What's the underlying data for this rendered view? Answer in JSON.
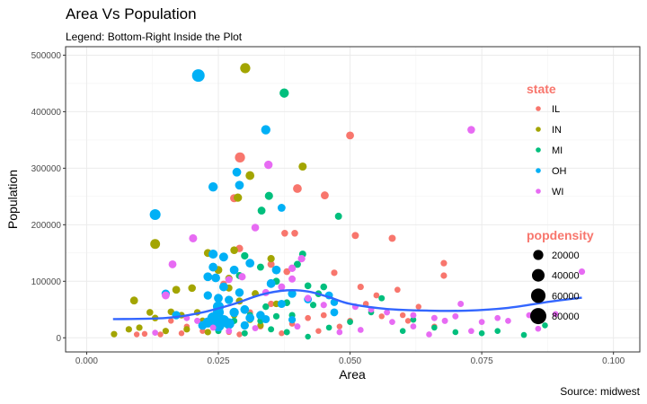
{
  "chart_data": {
    "type": "scatter",
    "title": "Area Vs Population",
    "subtitle": "Legend: Bottom-Right Inside the Plot",
    "caption": "Source: midwest",
    "xlabel": "Area",
    "ylabel": "Population",
    "xlim": [
      -0.004,
      0.105
    ],
    "ylim": [
      -25000,
      515000
    ],
    "x_ticks": [
      0,
      0.025,
      0.05,
      0.075,
      0.1
    ],
    "x_tick_labels": [
      "0.000",
      "0.025",
      "0.050",
      "0.075",
      "0.100"
    ],
    "y_ticks": [
      0,
      100000,
      200000,
      300000,
      400000,
      500000
    ],
    "y_tick_labels": [
      "0",
      "100000",
      "200000",
      "300000",
      "400000",
      "500000"
    ],
    "grid": true,
    "legend_placement": "bottom-right inside",
    "legend_color": {
      "title": "state",
      "entries": [
        {
          "label": "IL",
          "color": "#F8766D"
        },
        {
          "label": "IN",
          "color": "#A3A500"
        },
        {
          "label": "MI",
          "color": "#00BF7D"
        },
        {
          "label": "OH",
          "color": "#00B0F6"
        },
        {
          "label": "WI",
          "color": "#E76BF3"
        }
      ]
    },
    "legend_size": {
      "title": "popdensity",
      "entries": [
        {
          "label": "20000",
          "value": 20000
        },
        {
          "label": "40000",
          "value": 40000
        },
        {
          "label": "60000",
          "value": 60000
        },
        {
          "label": "80000",
          "value": 80000
        }
      ]
    },
    "legend_title_color": "#F8766D",
    "smooth_color": "#3366FF",
    "smooth": [
      [
        0.005,
        33000
      ],
      [
        0.015,
        35000
      ],
      [
        0.022,
        45000
      ],
      [
        0.028,
        60000
      ],
      [
        0.033,
        76000
      ],
      [
        0.038,
        84000
      ],
      [
        0.042,
        82000
      ],
      [
        0.046,
        72000
      ],
      [
        0.05,
        60000
      ],
      [
        0.057,
        51000
      ],
      [
        0.065,
        48000
      ],
      [
        0.072,
        48000
      ],
      [
        0.08,
        53000
      ],
      [
        0.088,
        64000
      ],
      [
        0.094,
        71000
      ]
    ],
    "point_columns": [
      "area",
      "population",
      "state",
      "popdensity"
    ],
    "points": [
      [
        0.0291,
        319000,
        "IL",
        20000
      ],
      [
        0.05,
        358000,
        "IL",
        8000
      ],
      [
        0.04,
        264000,
        "IL",
        12000
      ],
      [
        0.0452,
        252000,
        "IL",
        8000
      ],
      [
        0.051,
        181000,
        "IL",
        5000
      ],
      [
        0.058,
        176000,
        "IL",
        5000
      ],
      [
        0.0678,
        132000,
        "IL",
        3000
      ],
      [
        0.0678,
        110000,
        "IL",
        3000
      ],
      [
        0.0376,
        185000,
        "IL",
        4000
      ],
      [
        0.0395,
        185000,
        "IL",
        4000
      ],
      [
        0.028,
        247000,
        "IL",
        9000
      ],
      [
        0.029,
        158000,
        "IL",
        6000
      ],
      [
        0.035,
        130000,
        "IL",
        5000
      ],
      [
        0.038,
        117000,
        "IL",
        4000
      ],
      [
        0.047,
        115000,
        "IL",
        3000
      ],
      [
        0.052,
        90000,
        "IL",
        3000
      ],
      [
        0.059,
        85000,
        "IL",
        2000
      ],
      [
        0.055,
        75000,
        "IL",
        2000
      ],
      [
        0.053,
        60000,
        "IL",
        2000
      ],
      [
        0.045,
        40000,
        "IL",
        2000
      ],
      [
        0.042,
        35000,
        "IL",
        2000
      ],
      [
        0.048,
        20000,
        "IL",
        1500
      ],
      [
        0.035,
        60000,
        "IL",
        3000
      ],
      [
        0.031,
        45000,
        "IL",
        2500
      ],
      [
        0.027,
        10000,
        "IL",
        1500
      ],
      [
        0.022,
        12000,
        "IL",
        1500
      ],
      [
        0.018,
        8000,
        "IL",
        1500
      ],
      [
        0.014,
        6000,
        "IL",
        1500
      ],
      [
        0.011,
        7000,
        "IL",
        1500
      ],
      [
        0.0095,
        6000,
        "IL",
        1500
      ],
      [
        0.019,
        20000,
        "IL",
        1500
      ],
      [
        0.016,
        30000,
        "IL",
        1500
      ],
      [
        0.033,
        20000,
        "IL",
        2000
      ],
      [
        0.039,
        25000,
        "IL",
        2000
      ],
      [
        0.044,
        12000,
        "IL",
        1500
      ],
      [
        0.05,
        30000,
        "IL",
        2000
      ],
      [
        0.06,
        40000,
        "IL",
        1500
      ],
      [
        0.063,
        55000,
        "IL",
        1500
      ],
      [
        0.056,
        38000,
        "IL",
        1500
      ],
      [
        0.061,
        30000,
        "IL",
        1500
      ],
      [
        0.066,
        20000,
        "IL",
        1500
      ],
      [
        0.026,
        95000,
        "IL",
        4000
      ],
      [
        0.024,
        40000,
        "IL",
        2500
      ],
      [
        0.029,
        6000,
        "IL",
        1500
      ],
      [
        0.037,
        8000,
        "IL",
        1500
      ],
      [
        0.0301,
        477000,
        "IN",
        20000
      ],
      [
        0.041,
        303000,
        "IN",
        9000
      ],
      [
        0.031,
        287000,
        "IN",
        12000
      ],
      [
        0.0287,
        248000,
        "IN",
        10000
      ],
      [
        0.013,
        166000,
        "IN",
        18000
      ],
      [
        0.009,
        66000,
        "IN",
        8000
      ],
      [
        0.0052,
        6500,
        "IN",
        3000
      ],
      [
        0.028,
        155000,
        "IN",
        7000
      ],
      [
        0.035,
        140000,
        "IN",
        6000
      ],
      [
        0.023,
        150000,
        "IN",
        8000
      ],
      [
        0.025,
        120000,
        "IN",
        8000
      ],
      [
        0.027,
        105000,
        "IN",
        6000
      ],
      [
        0.02,
        88000,
        "IN",
        7000
      ],
      [
        0.017,
        85000,
        "IN",
        8000
      ],
      [
        0.012,
        45000,
        "IN",
        4000
      ],
      [
        0.013,
        35000,
        "IN",
        3500
      ],
      [
        0.016,
        46000,
        "IN",
        3500
      ],
      [
        0.018,
        40000,
        "IN",
        3500
      ],
      [
        0.021,
        45000,
        "IN",
        3500
      ],
      [
        0.022,
        30000,
        "IN",
        3500
      ],
      [
        0.024,
        35000,
        "IN",
        3500
      ],
      [
        0.026,
        25000,
        "IN",
        3500
      ],
      [
        0.028,
        40000,
        "IN",
        3000
      ],
      [
        0.031,
        32000,
        "IN",
        3500
      ],
      [
        0.033,
        22000,
        "IN",
        3000
      ],
      [
        0.01,
        18000,
        "IN",
        3000
      ],
      [
        0.008,
        15000,
        "IN",
        3000
      ],
      [
        0.015,
        12000,
        "IN",
        3000
      ],
      [
        0.019,
        15000,
        "IN",
        3000
      ],
      [
        0.023,
        10000,
        "IN",
        3000
      ],
      [
        0.029,
        65000,
        "IN",
        5000
      ],
      [
        0.032,
        78000,
        "IN",
        5000
      ],
      [
        0.036,
        60000,
        "IN",
        3500
      ],
      [
        0.027,
        88000,
        "IN",
        5000
      ],
      [
        0.0375,
        433000,
        "MI",
        15000
      ],
      [
        0.0346,
        251000,
        "MI",
        9000
      ],
      [
        0.0332,
        225000,
        "MI",
        8000
      ],
      [
        0.0478,
        215000,
        "MI",
        5000
      ],
      [
        0.041,
        148000,
        "MI",
        5000
      ],
      [
        0.03,
        145000,
        "MI",
        6000
      ],
      [
        0.04,
        130000,
        "MI",
        5000
      ],
      [
        0.033,
        125000,
        "MI",
        5000
      ],
      [
        0.029,
        110000,
        "MI",
        5000
      ],
      [
        0.036,
        100000,
        "MI",
        5000
      ],
      [
        0.042,
        92000,
        "MI",
        4000
      ],
      [
        0.044,
        78000,
        "MI",
        4000
      ],
      [
        0.038,
        62000,
        "MI",
        4000
      ],
      [
        0.034,
        55000,
        "MI",
        3500
      ],
      [
        0.031,
        40000,
        "MI",
        3000
      ],
      [
        0.036,
        38000,
        "MI",
        3000
      ],
      [
        0.039,
        40000,
        "MI",
        3000
      ],
      [
        0.033,
        30000,
        "MI",
        3000
      ],
      [
        0.035,
        15000,
        "MI",
        2500
      ],
      [
        0.038,
        10000,
        "MI",
        2500
      ],
      [
        0.03,
        8000,
        "MI",
        2500
      ],
      [
        0.025,
        12000,
        "MI",
        2500
      ],
      [
        0.046,
        18000,
        "MI",
        2000
      ],
      [
        0.05,
        28000,
        "MI",
        2000
      ],
      [
        0.054,
        45000,
        "MI",
        2000
      ],
      [
        0.056,
        70000,
        "MI",
        2500
      ],
      [
        0.062,
        32000,
        "MI",
        2000
      ],
      [
        0.066,
        18000,
        "MI",
        1800
      ],
      [
        0.07,
        10000,
        "MI",
        1800
      ],
      [
        0.075,
        8000,
        "MI",
        1800
      ],
      [
        0.078,
        12000,
        "MI",
        1800
      ],
      [
        0.06,
        12000,
        "MI",
        1800
      ],
      [
        0.045,
        90000,
        "MI",
        4000
      ],
      [
        0.028,
        30000,
        "MI",
        3000
      ],
      [
        0.043,
        58000,
        "MI",
        3000
      ],
      [
        0.042,
        2000,
        "MI",
        1500
      ],
      [
        0.087,
        22000,
        "MI",
        1800
      ],
      [
        0.083,
        5000,
        "MI",
        1800
      ],
      [
        0.0212,
        464000,
        "OH",
        40000
      ],
      [
        0.034,
        368000,
        "OH",
        15000
      ],
      [
        0.0285,
        293000,
        "OH",
        12000
      ],
      [
        0.029,
        270000,
        "OH",
        12000
      ],
      [
        0.024,
        267000,
        "OH",
        15000
      ],
      [
        0.037,
        230000,
        "OH",
        8000
      ],
      [
        0.013,
        218000,
        "OH",
        25000
      ],
      [
        0.024,
        148000,
        "OH",
        14000
      ],
      [
        0.026,
        143000,
        "OH",
        13000
      ],
      [
        0.031,
        132000,
        "OH",
        12000
      ],
      [
        0.024,
        125000,
        "OH",
        12000
      ],
      [
        0.028,
        120000,
        "OH",
        12000
      ],
      [
        0.036,
        120000,
        "OH",
        12000
      ],
      [
        0.023,
        108000,
        "OH",
        12000
      ],
      [
        0.0245,
        106000,
        "OH",
        12000
      ],
      [
        0.026,
        90000,
        "OH",
        12000
      ],
      [
        0.035,
        96000,
        "OH",
        12000
      ],
      [
        0.029,
        80000,
        "OH",
        11000
      ],
      [
        0.039,
        78000,
        "OH",
        10000
      ],
      [
        0.023,
        75000,
        "OH",
        10000
      ],
      [
        0.025,
        70000,
        "OH",
        12000
      ],
      [
        0.027,
        67000,
        "OH",
        10000
      ],
      [
        0.015,
        78000,
        "OH",
        10000
      ],
      [
        0.042,
        68000,
        "OH",
        8000
      ],
      [
        0.037,
        60000,
        "OH",
        9000
      ],
      [
        0.025,
        55000,
        "OH",
        25000
      ],
      [
        0.025,
        45000,
        "OH",
        25000
      ],
      [
        0.024,
        35000,
        "OH",
        30000
      ],
      [
        0.026,
        30000,
        "OH",
        30000
      ],
      [
        0.025,
        22000,
        "OH",
        35000
      ],
      [
        0.027,
        25000,
        "OH",
        25000
      ],
      [
        0.023,
        27000,
        "OH",
        20000
      ],
      [
        0.028,
        45000,
        "OH",
        15000
      ],
      [
        0.03,
        50000,
        "OH",
        12000
      ],
      [
        0.031,
        35000,
        "OH",
        12000
      ],
      [
        0.033,
        40000,
        "OH",
        11000
      ],
      [
        0.017,
        40000,
        "OH",
        10000
      ],
      [
        0.047,
        45000,
        "OH",
        8000
      ],
      [
        0.047,
        63000,
        "OH",
        7000
      ],
      [
        0.046,
        75000,
        "OH",
        8000
      ],
      [
        0.039,
        32000,
        "OH",
        6000
      ],
      [
        0.022,
        22000,
        "OH",
        12000
      ],
      [
        0.03,
        22000,
        "OH",
        10000
      ],
      [
        0.034,
        33000,
        "OH",
        9000
      ],
      [
        0.073,
        368000,
        "WI",
        7000
      ],
      [
        0.0345,
        306000,
        "WI",
        10000
      ],
      [
        0.032,
        195000,
        "WI",
        7000
      ],
      [
        0.0202,
        176000,
        "WI",
        9000
      ],
      [
        0.0163,
        130000,
        "WI",
        8000
      ],
      [
        0.0408,
        140000,
        "WI",
        6000
      ],
      [
        0.039,
        123000,
        "WI",
        6000
      ],
      [
        0.0295,
        108000,
        "WI",
        6000
      ],
      [
        0.039,
        104000,
        "WI",
        5000
      ],
      [
        0.027,
        103000,
        "WI",
        5000
      ],
      [
        0.015,
        75000,
        "WI",
        8000
      ],
      [
        0.037,
        90000,
        "WI",
        5000
      ],
      [
        0.034,
        80000,
        "WI",
        5000
      ],
      [
        0.042,
        70000,
        "WI",
        4000
      ],
      [
        0.045,
        58000,
        "WI",
        3000
      ],
      [
        0.051,
        55000,
        "WI",
        3000
      ],
      [
        0.054,
        50000,
        "WI",
        2500
      ],
      [
        0.057,
        45000,
        "WI",
        2500
      ],
      [
        0.062,
        40000,
        "WI",
        2500
      ],
      [
        0.066,
        35000,
        "WI",
        2500
      ],
      [
        0.068,
        30000,
        "WI",
        2500
      ],
      [
        0.07,
        38000,
        "WI",
        2500
      ],
      [
        0.075,
        28000,
        "WI",
        2000
      ],
      [
        0.078,
        35000,
        "WI",
        2000
      ],
      [
        0.08,
        30000,
        "WI",
        2000
      ],
      [
        0.084,
        40000,
        "WI",
        2000
      ],
      [
        0.089,
        42000,
        "WI",
        2000
      ],
      [
        0.0857,
        16000,
        "WI",
        2000
      ],
      [
        0.094,
        117000,
        "WI",
        3000
      ],
      [
        0.071,
        60000,
        "WI",
        2500
      ],
      [
        0.062,
        20000,
        "WI",
        2000
      ],
      [
        0.058,
        28000,
        "WI",
        2000
      ],
      [
        0.052,
        14000,
        "WI",
        2000
      ],
      [
        0.048,
        10000,
        "WI",
        2000
      ],
      [
        0.073,
        12000,
        "WI",
        2000
      ],
      [
        0.065,
        6000,
        "WI",
        1800
      ],
      [
        0.04,
        20000,
        "WI",
        2500
      ],
      [
        0.027,
        12000,
        "WI",
        2500
      ],
      [
        0.021,
        30000,
        "WI",
        2500
      ],
      [
        0.019,
        35000,
        "WI",
        2500
      ],
      [
        0.013,
        9000,
        "WI",
        2000
      ],
      [
        0.032,
        17000,
        "WI",
        2500
      ],
      [
        0.024,
        18000,
        "WI",
        2500
      ]
    ]
  }
}
